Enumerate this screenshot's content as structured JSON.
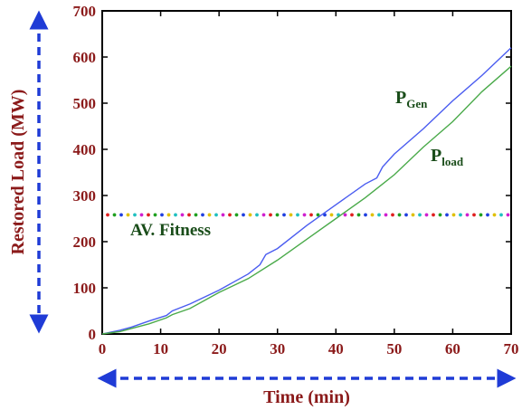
{
  "chart_data": {
    "type": "line",
    "xlabel": "Time (min)",
    "ylabel": "Restored Load (MW)",
    "xlim": [
      0,
      70
    ],
    "ylim": [
      0,
      700
    ],
    "xticks": [
      "0",
      "10",
      "20",
      "30",
      "40",
      "50",
      "60",
      "70"
    ],
    "yticks": [
      "0",
      "100",
      "200",
      "300",
      "400",
      "500",
      "600",
      "700"
    ],
    "grid": false,
    "series": [
      {
        "name": "P_Gen",
        "label_main": "P",
        "label_sub": "Gen",
        "color": "#4a5cf0",
        "x": [
          0,
          3,
          5,
          8,
          11,
          12,
          15,
          20,
          25,
          27,
          28,
          30,
          35,
          40,
          45,
          47,
          48,
          50,
          55,
          60,
          65,
          70
        ],
        "y": [
          0,
          8,
          15,
          28,
          40,
          50,
          65,
          95,
          130,
          150,
          172,
          185,
          235,
          280,
          325,
          338,
          362,
          390,
          445,
          505,
          560,
          620
        ]
      },
      {
        "name": "P_load",
        "label_main": "P",
        "label_sub": "load",
        "color": "#4aaa4a",
        "x": [
          0,
          3,
          5,
          8,
          11,
          12,
          15,
          20,
          25,
          30,
          35,
          40,
          45,
          48,
          50,
          55,
          60,
          65,
          70
        ],
        "y": [
          0,
          5,
          12,
          22,
          35,
          42,
          55,
          90,
          120,
          160,
          205,
          250,
          295,
          325,
          345,
          405,
          460,
          525,
          580
        ]
      }
    ],
    "reference_line": {
      "label": "AV. Fitness",
      "y": 258,
      "style": "multicolor-dotted",
      "dot_colors": [
        "#e02020",
        "#20a020",
        "#2040e0",
        "#e0c000",
        "#20c0c0",
        "#d020d0"
      ]
    },
    "annotations": {
      "arrows": "blue-dashed-double-headed",
      "arrow_color": "#1f3bd6"
    }
  }
}
